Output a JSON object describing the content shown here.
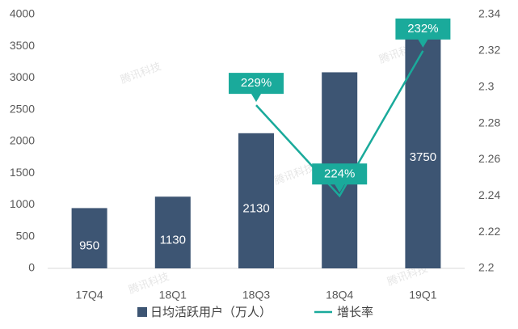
{
  "chart_data": {
    "type": "bar",
    "watermark": "腾讯科技",
    "categories": [
      "17Q4",
      "18Q1",
      "18Q3",
      "18Q4",
      "19Q1"
    ],
    "series": [
      {
        "name": "日均活跃用户（万人）",
        "type": "bar",
        "color": "#3d5573",
        "values": [
          950,
          1130,
          2130,
          3090,
          3750
        ]
      },
      {
        "name": "增长率",
        "type": "line",
        "axis": "y2",
        "color": "#1aaa9b",
        "values": [
          null,
          null,
          2.29,
          2.24,
          2.32
        ],
        "value_labels": [
          null,
          null,
          "229%",
          "224%",
          "232%"
        ]
      }
    ],
    "ylim": [
      0,
      4000
    ],
    "yticks": [
      0,
      500,
      1000,
      1500,
      2000,
      2500,
      3000,
      3500,
      4000
    ],
    "y2lim": [
      2.2,
      2.34
    ],
    "y2ticks": [
      2.2,
      2.22,
      2.24,
      2.26,
      2.28,
      2.3,
      2.32,
      2.34
    ],
    "legend": "bottom"
  }
}
